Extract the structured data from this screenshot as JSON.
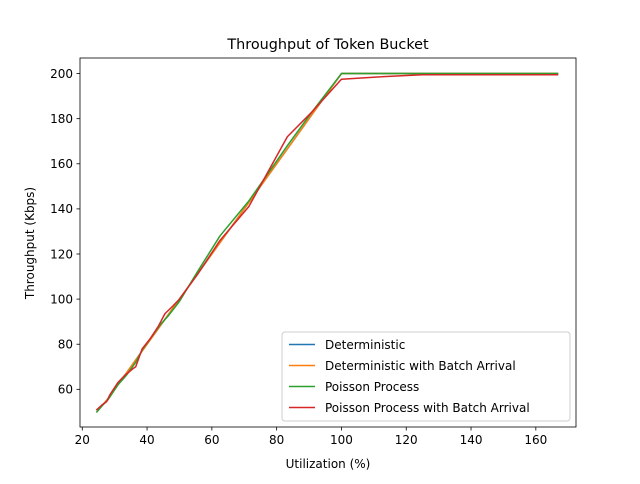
{
  "chart_data": {
    "type": "line",
    "title": "Throughput of Token Bucket",
    "xlabel": "Utilization (%)",
    "ylabel": "Throughput (Kbps)",
    "xlim": [
      19.3,
      172.4
    ],
    "ylim": [
      43.3,
      206.9
    ],
    "xticks": [
      20,
      40,
      60,
      80,
      100,
      120,
      140,
      160
    ],
    "yticks": [
      60,
      80,
      100,
      120,
      140,
      160,
      180,
      200
    ],
    "grid": false,
    "legend_position": "lower-right",
    "series": [
      {
        "name": "Deterministic",
        "color": "#1f77b4",
        "points": [
          [
            25,
            51
          ],
          [
            27.8,
            55.6
          ],
          [
            31.3,
            62.6
          ],
          [
            35.7,
            71.4
          ],
          [
            38.5,
            77
          ],
          [
            41.7,
            83.4
          ],
          [
            45.5,
            91
          ],
          [
            50,
            100
          ],
          [
            55.6,
            111.2
          ],
          [
            62.5,
            125
          ],
          [
            71.4,
            142.8
          ],
          [
            83.3,
            166.6
          ],
          [
            90.9,
            181.8
          ],
          [
            100,
            200
          ],
          [
            111.1,
            200
          ],
          [
            125,
            200
          ],
          [
            142.9,
            200
          ],
          [
            166.7,
            200
          ]
        ]
      },
      {
        "name": "Deterministic with Batch Arrival",
        "color": "#ff7f0e",
        "points": [
          [
            25,
            51
          ],
          [
            27.8,
            55.6
          ],
          [
            31.3,
            62.6
          ],
          [
            35.7,
            71.4
          ],
          [
            38.5,
            77
          ],
          [
            41.7,
            83.4
          ],
          [
            45.5,
            91
          ],
          [
            50,
            100
          ],
          [
            55.6,
            111.2
          ],
          [
            62.5,
            125
          ],
          [
            71.4,
            142.8
          ],
          [
            83.3,
            166.6
          ],
          [
            90.9,
            181.8
          ],
          [
            100,
            200
          ],
          [
            111.1,
            200
          ],
          [
            125,
            200
          ],
          [
            142.9,
            200
          ],
          [
            166.7,
            200
          ]
        ]
      },
      {
        "name": "Poisson Process",
        "color": "#2ca02c",
        "points": [
          [
            24.5,
            50
          ],
          [
            26,
            52.5
          ],
          [
            28,
            55.5
          ],
          [
            31,
            62
          ],
          [
            33.5,
            66
          ],
          [
            36.5,
            72
          ],
          [
            38.5,
            77.5
          ],
          [
            41.5,
            83.5
          ],
          [
            44,
            88.5
          ],
          [
            46.5,
            92.5
          ],
          [
            50,
            99
          ],
          [
            55.5,
            112
          ],
          [
            62.5,
            128
          ],
          [
            71.4,
            143.5
          ],
          [
            83.3,
            168
          ],
          [
            90.9,
            183
          ],
          [
            100,
            200
          ],
          [
            111.1,
            200
          ],
          [
            125,
            200
          ],
          [
            142.9,
            200
          ],
          [
            166.7,
            200
          ]
        ]
      },
      {
        "name": "Poisson Process with Batch Arrival",
        "color": "#d62728",
        "points": [
          [
            24.5,
            51
          ],
          [
            26,
            53
          ],
          [
            27.5,
            54.5
          ],
          [
            28.5,
            57.5
          ],
          [
            31,
            63
          ],
          [
            33,
            66
          ],
          [
            35.5,
            69
          ],
          [
            36.5,
            70
          ],
          [
            38.5,
            78
          ],
          [
            41,
            82.5
          ],
          [
            43.5,
            88
          ],
          [
            45.5,
            93.5
          ],
          [
            48,
            97
          ],
          [
            50,
            100
          ],
          [
            55.6,
            111
          ],
          [
            62.5,
            126
          ],
          [
            71.4,
            141
          ],
          [
            83.3,
            172
          ],
          [
            90.9,
            183
          ],
          [
            100,
            197.5
          ],
          [
            111.1,
            198.5
          ],
          [
            125,
            199.5
          ],
          [
            142.9,
            199.5
          ],
          [
            166.7,
            199.5
          ]
        ]
      }
    ]
  }
}
